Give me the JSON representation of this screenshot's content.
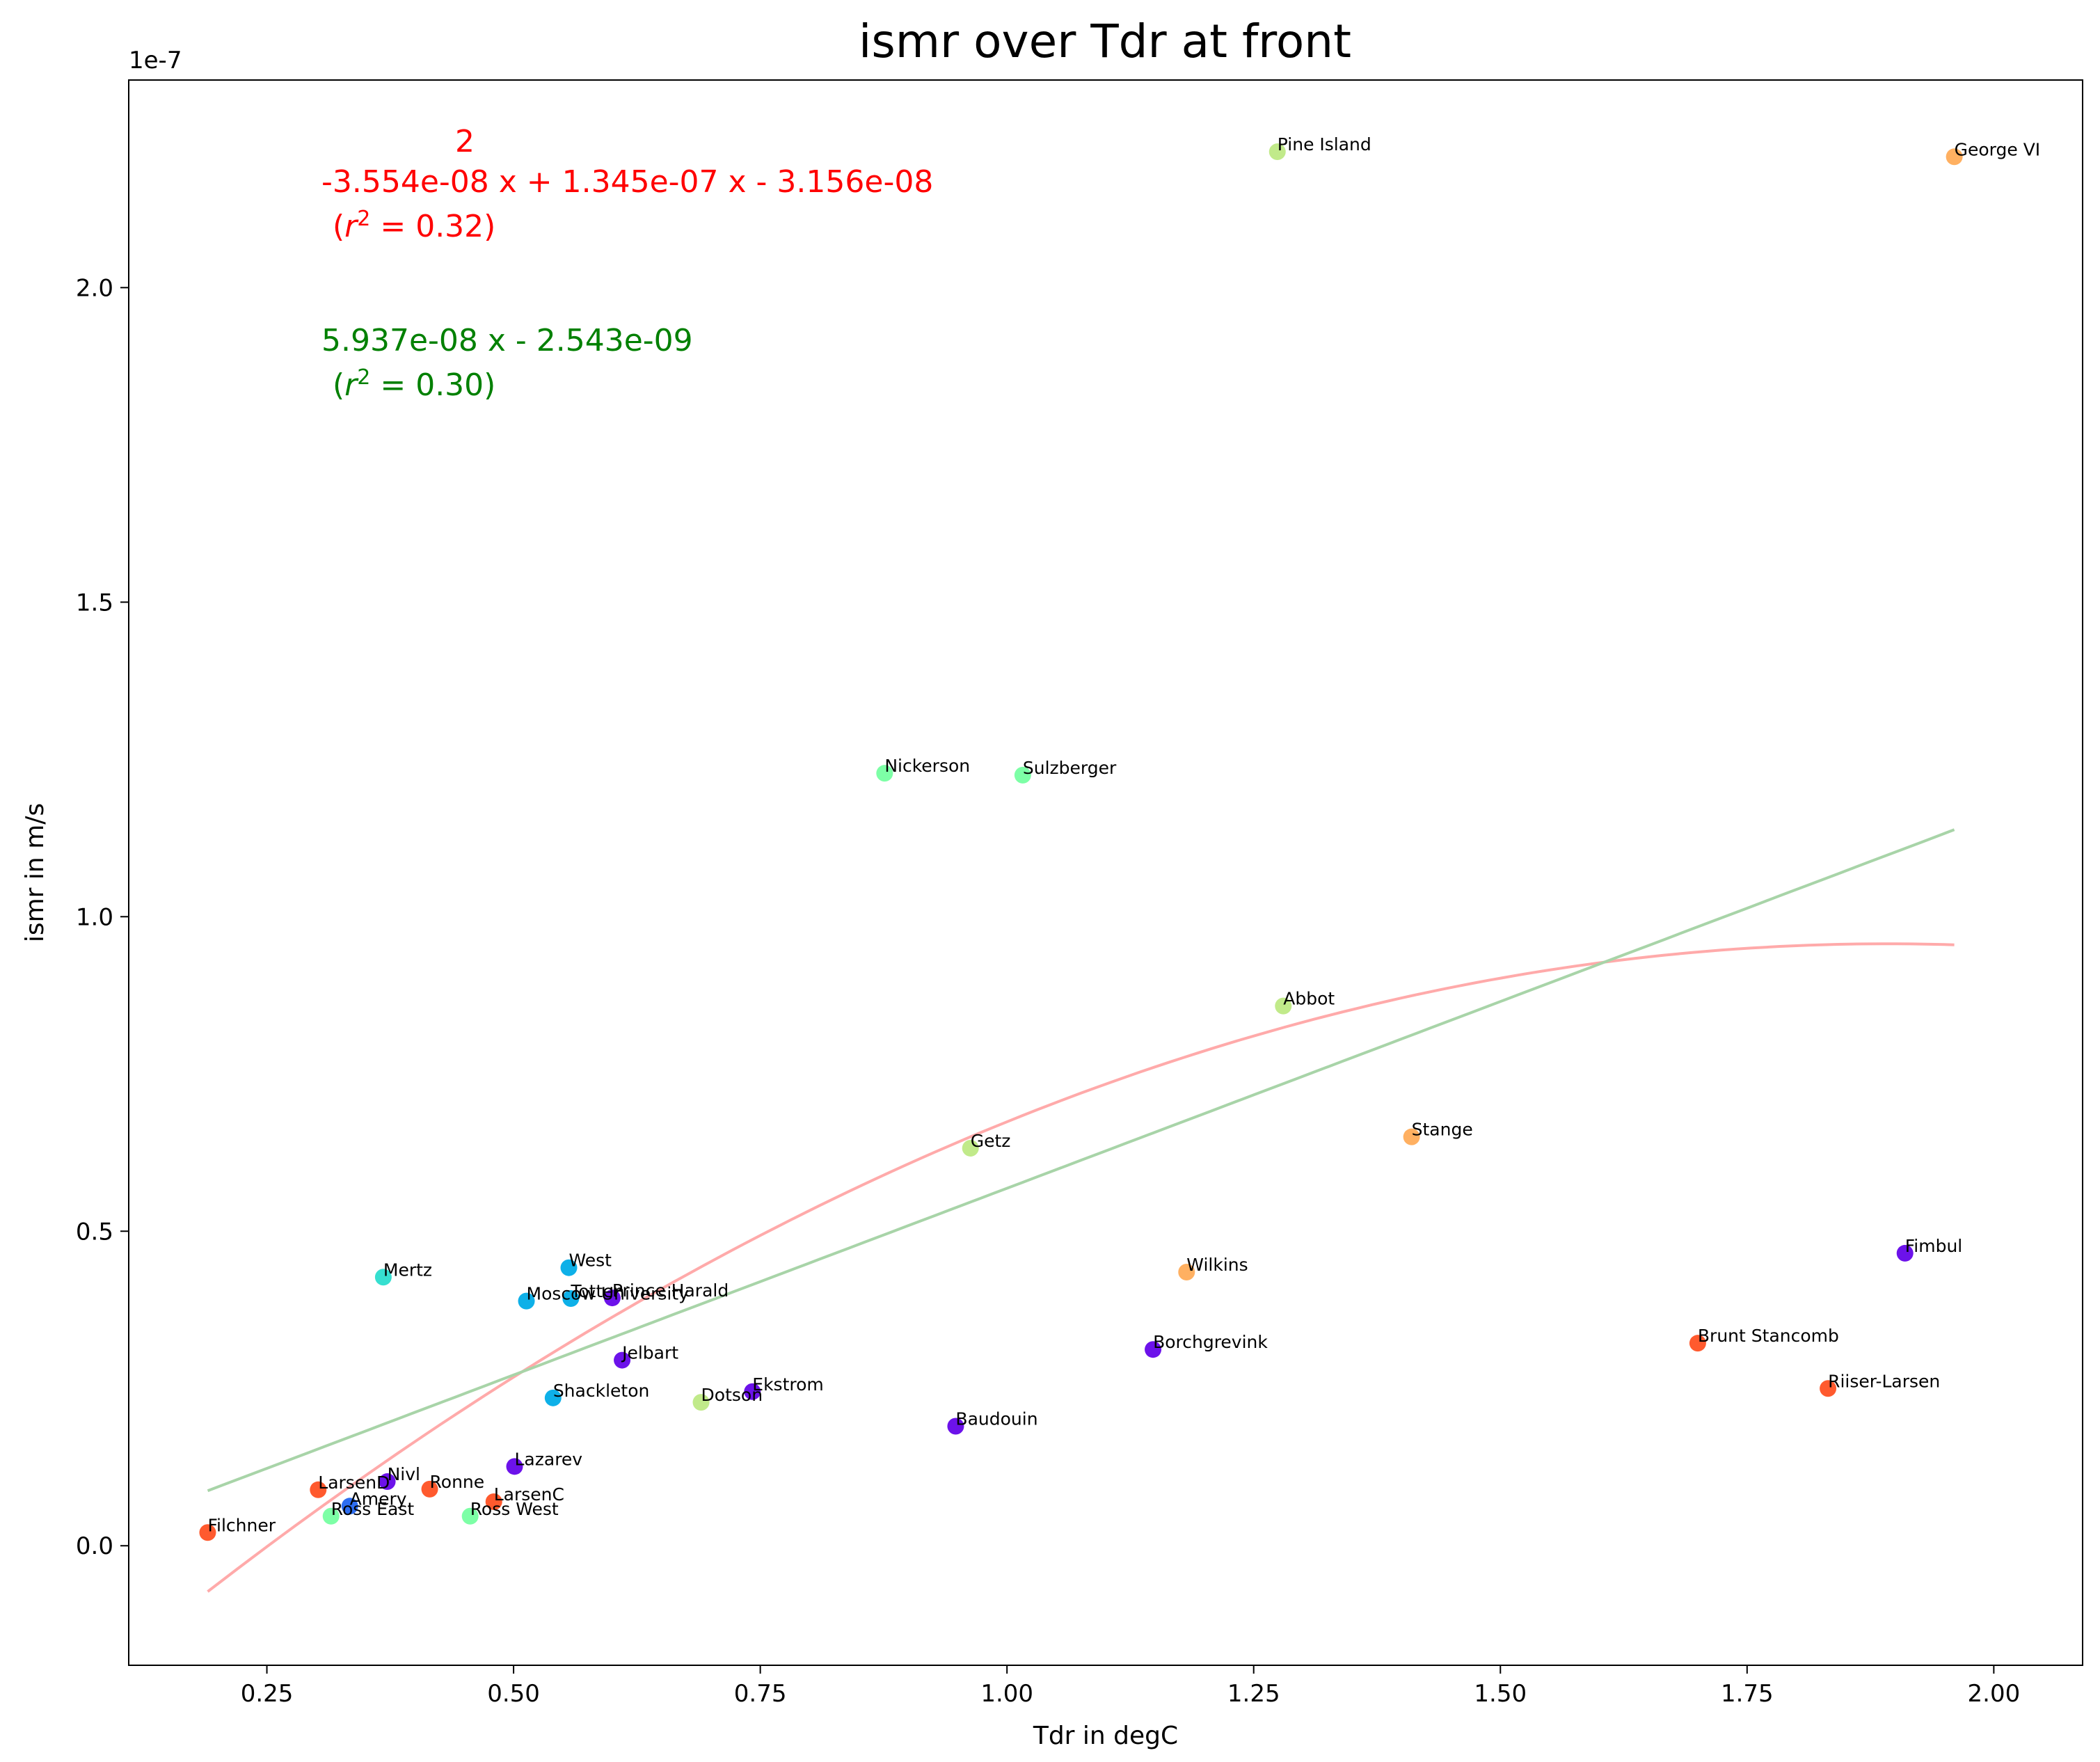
{
  "chart_data": {
    "type": "scatter",
    "title": "ismr over Tdr at front",
    "xlabel": "Tdr in degC",
    "ylabel": "ismr in m/s",
    "y_offset_text": "1e-7",
    "y_scale_factor": 1e-07,
    "xlim": [
      0.11,
      2.09
    ],
    "ylim": [
      -1.9e-08,
      2.33e-07
    ],
    "xticks": [
      0.25,
      0.5,
      0.75,
      1.0,
      1.25,
      1.5,
      1.75,
      2.0
    ],
    "xtick_labels": [
      "0.25",
      "0.50",
      "0.75",
      "1.00",
      "1.25",
      "1.50",
      "1.75",
      "2.00"
    ],
    "yticks": [
      0.0,
      5e-08,
      1e-07,
      1.5e-07,
      2e-07
    ],
    "ytick_labels": [
      "0.0",
      "0.5",
      "1.0",
      "1.5",
      "2.0"
    ],
    "points": [
      {
        "name": "Filchner",
        "x": 0.19,
        "y": 2.1e-09,
        "color": "#ff5a2e"
      },
      {
        "name": "LarsenD",
        "x": 0.302,
        "y": 8.9e-09,
        "color": "#ff5a2e"
      },
      {
        "name": "Ross East",
        "x": 0.315,
        "y": 4.7e-09,
        "color": "#7dffa6"
      },
      {
        "name": "Amery",
        "x": 0.334,
        "y": 6.3e-09,
        "color": "#2d6df0"
      },
      {
        "name": "Nivl",
        "x": 0.372,
        "y": 1.02e-08,
        "color": "#6c12ea"
      },
      {
        "name": "Mertz",
        "x": 0.368,
        "y": 4.27e-08,
        "color": "#36dfd0"
      },
      {
        "name": "Ronne",
        "x": 0.415,
        "y": 9e-09,
        "color": "#ff5a2e"
      },
      {
        "name": "Ross West",
        "x": 0.456,
        "y": 4.7e-09,
        "color": "#7dffa6"
      },
      {
        "name": "LarsenC",
        "x": 0.48,
        "y": 7e-09,
        "color": "#ff5a2e"
      },
      {
        "name": "Lazarev",
        "x": 0.501,
        "y": 1.26e-08,
        "color": "#6c12ea"
      },
      {
        "name": "Moscow University",
        "x": 0.513,
        "y": 3.89e-08,
        "color": "#0eb0e8"
      },
      {
        "name": "Shackleton",
        "x": 0.54,
        "y": 2.35e-08,
        "color": "#0eb0e8"
      },
      {
        "name": "West",
        "x": 0.556,
        "y": 4.42e-08,
        "color": "#0eb0e8"
      },
      {
        "name": "Totten",
        "x": 0.558,
        "y": 3.93e-08,
        "color": "#0eb0e8"
      },
      {
        "name": "Prince Harald",
        "x": 0.6,
        "y": 3.94e-08,
        "color": "#6c12ea"
      },
      {
        "name": "Jelbart",
        "x": 0.61,
        "y": 2.95e-08,
        "color": "#6c12ea"
      },
      {
        "name": "Dotson",
        "x": 0.69,
        "y": 2.28e-08,
        "color": "#c1ea8a"
      },
      {
        "name": "Ekstrom",
        "x": 0.742,
        "y": 2.45e-08,
        "color": "#6c12ea"
      },
      {
        "name": "Nickerson",
        "x": 0.876,
        "y": 1.228e-07,
        "color": "#7dffa6"
      },
      {
        "name": "Baudouin",
        "x": 0.948,
        "y": 1.9e-08,
        "color": "#6c12ea"
      },
      {
        "name": "Getz",
        "x": 0.963,
        "y": 6.32e-08,
        "color": "#c1ea8a"
      },
      {
        "name": "Sulzberger",
        "x": 1.016,
        "y": 1.225e-07,
        "color": "#7dffa6"
      },
      {
        "name": "Borchgrevink",
        "x": 1.148,
        "y": 3.12e-08,
        "color": "#6c12ea"
      },
      {
        "name": "Wilkins",
        "x": 1.182,
        "y": 4.35e-08,
        "color": "#ffb061"
      },
      {
        "name": "Pine Island",
        "x": 1.274,
        "y": 2.216e-07,
        "color": "#c1ea8a"
      },
      {
        "name": "Abbot",
        "x": 1.28,
        "y": 8.58e-08,
        "color": "#c1ea8a"
      },
      {
        "name": "Stange",
        "x": 1.41,
        "y": 6.5e-08,
        "color": "#ffb061"
      },
      {
        "name": "Brunt Stancomb",
        "x": 1.7,
        "y": 3.22e-08,
        "color": "#ff5a2e"
      },
      {
        "name": "Riiser-Larsen",
        "x": 1.832,
        "y": 2.5e-08,
        "color": "#ff5a2e"
      },
      {
        "name": "Fimbul",
        "x": 1.91,
        "y": 4.65e-08,
        "color": "#6c12ea"
      },
      {
        "name": "George VI",
        "x": 1.96,
        "y": 2.208e-07,
        "color": "#ffb061"
      }
    ],
    "fits": [
      {
        "kind": "quadratic",
        "coefficients": [
          -3.554e-08,
          1.345e-07,
          -3.156e-08
        ],
        "r2": 0.32,
        "x_range": [
          0.19,
          1.96
        ],
        "color": "#ff0000",
        "line_color": "#ffaaaa"
      },
      {
        "kind": "linear",
        "coefficients": [
          5.937e-08,
          -2.543e-09
        ],
        "r2": 0.3,
        "x_range": [
          0.19,
          1.96
        ],
        "color": "#008000",
        "line_color": "#a8d4a8"
      }
    ],
    "annotations": {
      "quad_exponent": "2",
      "quad_equation": "-3.554e-08 x + 1.345e-07 x - 3.156e-08",
      "quad_r2": "0.32",
      "lin_equation": "5.937e-08 x - 2.543e-09",
      "lin_r2": "0.30"
    }
  }
}
